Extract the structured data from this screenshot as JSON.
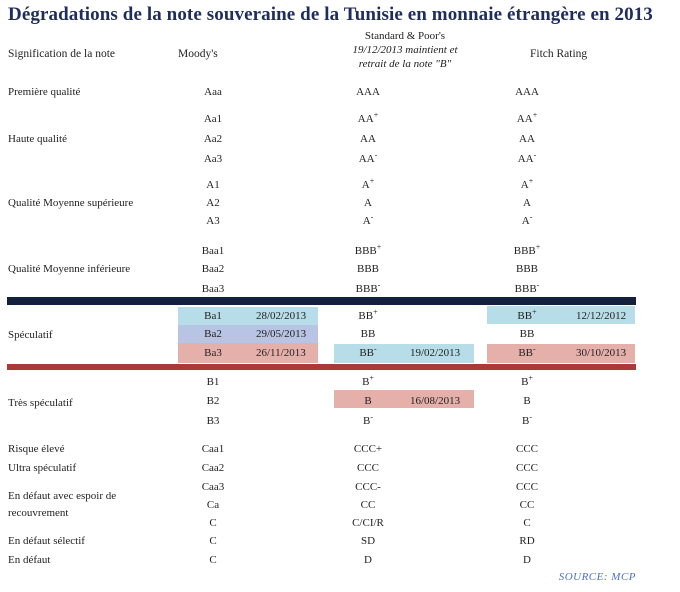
{
  "title": "Dégradations de la note souveraine de la Tunisie en monnaie étrangère en 2013",
  "headers": {
    "category": "Signification de la note",
    "moodys": "Moody's",
    "sp_line1": "Standard & Poor's",
    "sp_line2": "19/12/2013 maintient et",
    "sp_line3": "retrait de la note \"B\"",
    "fitch": "Fitch Rating"
  },
  "categories": {
    "premiere": "Première qualité",
    "haute": "Haute qualité",
    "moyenne_sup": "Qualité Moyenne supérieure",
    "moyenne_inf": "Qualité Moyenne inférieure",
    "speculatif": "Spéculatif",
    "tres_spec": "Très spéculatif",
    "risque": "Risque élevé",
    "ultra": "Ultra spéculatif",
    "defaut_espoir_1": "En défaut avec espoir de",
    "defaut_espoir_2": "recouvrement",
    "defaut_selectif": "En défaut sélectif",
    "defaut": "En défaut"
  },
  "rows": [
    {
      "moodys": "Aaa",
      "sp": "AAA",
      "sp_sup": "",
      "fitch": "AAA",
      "fitch_sup": ""
    },
    {
      "moodys": "Aa1",
      "sp": "AA",
      "sp_sup": "+",
      "fitch": "AA",
      "fitch_sup": "+"
    },
    {
      "moodys": "Aa2",
      "sp": "AA",
      "sp_sup": "",
      "fitch": "AA",
      "fitch_sup": ""
    },
    {
      "moodys": "Aa3",
      "sp": "AA",
      "sp_sup": "-",
      "fitch": "AA",
      "fitch_sup": "-"
    },
    {
      "moodys": "A1",
      "sp": "A",
      "sp_sup": "+",
      "fitch": "A",
      "fitch_sup": "+"
    },
    {
      "moodys": "A2",
      "sp": "A",
      "sp_sup": "",
      "fitch": "A",
      "fitch_sup": ""
    },
    {
      "moodys": "A3",
      "sp": "A",
      "sp_sup": "-",
      "fitch": "A",
      "fitch_sup": "-"
    },
    {
      "moodys": "Baa1",
      "sp": "BBB",
      "sp_sup": "+",
      "fitch": "BBB",
      "fitch_sup": "+"
    },
    {
      "moodys": "Baa2",
      "sp": "BBB",
      "sp_sup": "",
      "fitch": "BBB",
      "fitch_sup": ""
    },
    {
      "moodys": "Baa3",
      "sp": "BBB",
      "sp_sup": "-",
      "fitch": "BBB",
      "fitch_sup": "-"
    },
    {
      "moodys": "Ba1",
      "moodys_date": "28/02/2013",
      "sp": "BB",
      "sp_sup": "+",
      "fitch": "BB",
      "fitch_sup": "+",
      "fitch_date": "12/12/2012"
    },
    {
      "moodys": "Ba2",
      "moodys_date": "29/05/2013",
      "sp": "BB",
      "sp_sup": "",
      "fitch": "BB",
      "fitch_sup": ""
    },
    {
      "moodys": "Ba3",
      "moodys_date": "26/11/2013",
      "sp": "BB",
      "sp_sup": "-",
      "sp_date": "19/02/2013",
      "fitch": "BB",
      "fitch_sup": "-",
      "fitch_date": "30/10/2013"
    },
    {
      "moodys": "B1",
      "sp": "B",
      "sp_sup": "+",
      "fitch": "B",
      "fitch_sup": "+"
    },
    {
      "moodys": "B2",
      "sp": "B",
      "sp_sup": "",
      "sp_date": "16/08/2013",
      "fitch": "B",
      "fitch_sup": ""
    },
    {
      "moodys": "B3",
      "sp": "B",
      "sp_sup": "-",
      "fitch": "B",
      "fitch_sup": "-"
    },
    {
      "moodys": "Caa1",
      "sp": "CCC+",
      "sp_sup": "",
      "fitch": "CCC",
      "fitch_sup": ""
    },
    {
      "moodys": "Caa2",
      "sp": "CCC",
      "sp_sup": "",
      "fitch": "CCC",
      "fitch_sup": ""
    },
    {
      "moodys": "Caa3",
      "sp": "CCC-",
      "sp_sup": "",
      "fitch": "CCC",
      "fitch_sup": ""
    },
    {
      "moodys": "Ca",
      "sp": "CC",
      "sp_sup": "",
      "fitch": "CC",
      "fitch_sup": ""
    },
    {
      "moodys": "C",
      "sp": "C/CI/R",
      "sp_sup": "",
      "fitch": "C",
      "fitch_sup": ""
    },
    {
      "moodys": "C",
      "sp": "SD",
      "sp_sup": "",
      "fitch": "RD",
      "fitch_sup": ""
    },
    {
      "moodys": "C",
      "sp": "D",
      "sp_sup": "",
      "fitch": "D",
      "fitch_sup": ""
    }
  ],
  "source": "SOURCE: MCP",
  "colors": {
    "title": "#1f2d5c",
    "navy_bar": "#14213d",
    "red_bar": "#a83a3a",
    "light_blue": "#b7dde8",
    "lavender": "#b8c4e4",
    "pink": "#e6b0aa",
    "source": "#4a74c4"
  }
}
